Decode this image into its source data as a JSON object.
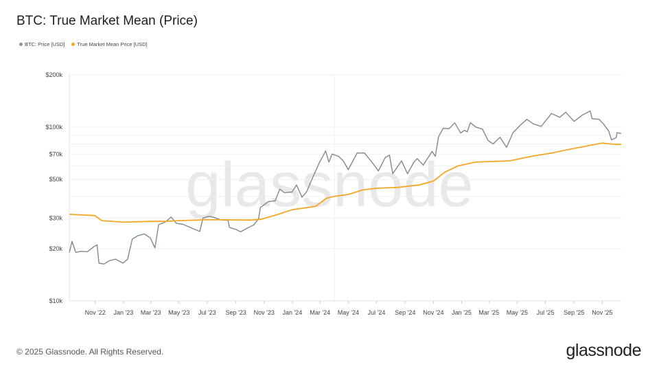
{
  "chart_data": {
    "type": "line",
    "title": "BTC: True Market Mean (Price)",
    "yscale": "log",
    "ylim": [
      10000,
      200000
    ],
    "y_ticks": [
      10000,
      20000,
      30000,
      50000,
      70000,
      100000,
      200000
    ],
    "y_tick_labels": [
      "$10k",
      "$20k",
      "$30k",
      "$50k",
      "$70k",
      "$100k",
      "$200k"
    ],
    "xlim": [
      "2022-09-06",
      "2025-12-12"
    ],
    "x_ticks": [
      "2022-11-01",
      "2023-01-01",
      "2023-03-01",
      "2023-05-01",
      "2023-07-01",
      "2023-09-01",
      "2023-11-01",
      "2024-01-01",
      "2024-03-01",
      "2024-05-01",
      "2024-07-01",
      "2024-09-01",
      "2024-11-01",
      "2025-01-01",
      "2025-03-01",
      "2025-05-01",
      "2025-07-01",
      "2025-09-01",
      "2025-11-01"
    ],
    "x_tick_labels": [
      "Nov '22",
      "Jan '23",
      "Mar '23",
      "May '23",
      "Jul '23",
      "Sep '23",
      "Nov '23",
      "Jan '24",
      "Mar '24",
      "May '24",
      "Jul '24",
      "Sep '24",
      "Nov '24",
      "Jan '25",
      "Mar '25",
      "May '25",
      "Jul '25",
      "Sep '25",
      "Nov '25"
    ],
    "grid": true,
    "legend_position": "top-left",
    "watermark": "glassnode",
    "series": [
      {
        "name": "BTC: Price [USD]",
        "color": "#7d8a8c",
        "points": [
          [
            "2022-09-06",
            19000
          ],
          [
            "2022-09-12",
            22000
          ],
          [
            "2022-09-20",
            19000
          ],
          [
            "2022-10-01",
            19300
          ],
          [
            "2022-10-15",
            19200
          ],
          [
            "2022-10-30",
            20600
          ],
          [
            "2022-11-05",
            21000
          ],
          [
            "2022-11-09",
            16500
          ],
          [
            "2022-11-20",
            16300
          ],
          [
            "2022-12-01",
            17000
          ],
          [
            "2022-12-15",
            17400
          ],
          [
            "2022-12-31",
            16500
          ],
          [
            "2023-01-10",
            17400
          ],
          [
            "2023-01-20",
            22700
          ],
          [
            "2023-02-01",
            23700
          ],
          [
            "2023-02-15",
            24300
          ],
          [
            "2023-02-28",
            23100
          ],
          [
            "2023-03-10",
            20200
          ],
          [
            "2023-03-18",
            27500
          ],
          [
            "2023-04-01",
            28400
          ],
          [
            "2023-04-14",
            30400
          ],
          [
            "2023-04-25",
            28000
          ],
          [
            "2023-05-10",
            27600
          ],
          [
            "2023-05-25",
            26500
          ],
          [
            "2023-06-15",
            25100
          ],
          [
            "2023-06-22",
            30000
          ],
          [
            "2023-07-05",
            30700
          ],
          [
            "2023-07-15",
            30300
          ],
          [
            "2023-07-30",
            29300
          ],
          [
            "2023-08-15",
            29100
          ],
          [
            "2023-08-18",
            26500
          ],
          [
            "2023-09-01",
            25800
          ],
          [
            "2023-09-11",
            25000
          ],
          [
            "2023-09-25",
            26200
          ],
          [
            "2023-10-10",
            27400
          ],
          [
            "2023-10-20",
            29700
          ],
          [
            "2023-10-24",
            34500
          ],
          [
            "2023-11-10",
            37300
          ],
          [
            "2023-11-25",
            37700
          ],
          [
            "2023-12-05",
            44000
          ],
          [
            "2023-12-15",
            42000
          ],
          [
            "2023-12-31",
            42300
          ],
          [
            "2024-01-10",
            46500
          ],
          [
            "2024-01-22",
            39500
          ],
          [
            "2024-02-01",
            42500
          ],
          [
            "2024-02-15",
            52000
          ],
          [
            "2024-02-28",
            62000
          ],
          [
            "2024-03-13",
            73000
          ],
          [
            "2024-03-20",
            63000
          ],
          [
            "2024-03-27",
            70000
          ],
          [
            "2024-04-10",
            68000
          ],
          [
            "2024-04-20",
            64000
          ],
          [
            "2024-05-01",
            57000
          ],
          [
            "2024-05-20",
            71000
          ],
          [
            "2024-06-05",
            71000
          ],
          [
            "2024-06-25",
            61000
          ],
          [
            "2024-07-05",
            56000
          ],
          [
            "2024-07-20",
            67000
          ],
          [
            "2024-07-29",
            69000
          ],
          [
            "2024-08-05",
            54000
          ],
          [
            "2024-08-24",
            64000
          ],
          [
            "2024-09-06",
            54000
          ],
          [
            "2024-09-20",
            63000
          ],
          [
            "2024-09-27",
            66000
          ],
          [
            "2024-10-10",
            60500
          ],
          [
            "2024-10-29",
            72500
          ],
          [
            "2024-11-05",
            68000
          ],
          [
            "2024-11-12",
            88000
          ],
          [
            "2024-11-22",
            98500
          ],
          [
            "2024-12-05",
            98000
          ],
          [
            "2024-12-17",
            106000
          ],
          [
            "2024-12-30",
            92500
          ],
          [
            "2025-01-07",
            96000
          ],
          [
            "2025-01-13",
            94000
          ],
          [
            "2025-01-20",
            106000
          ],
          [
            "2025-02-01",
            100000
          ],
          [
            "2025-02-15",
            97500
          ],
          [
            "2025-02-27",
            84000
          ],
          [
            "2025-03-10",
            80000
          ],
          [
            "2025-03-25",
            87500
          ],
          [
            "2025-04-08",
            76500
          ],
          [
            "2025-04-22",
            93000
          ],
          [
            "2025-05-10",
            104000
          ],
          [
            "2025-05-22",
            111000
          ],
          [
            "2025-06-05",
            104500
          ],
          [
            "2025-06-22",
            101000
          ],
          [
            "2025-07-10",
            116000
          ],
          [
            "2025-07-14",
            120000
          ],
          [
            "2025-08-01",
            114000
          ],
          [
            "2025-08-14",
            122000
          ],
          [
            "2025-09-01",
            108000
          ],
          [
            "2025-09-18",
            117000
          ],
          [
            "2025-10-06",
            124000
          ],
          [
            "2025-10-10",
            112000
          ],
          [
            "2025-10-25",
            111000
          ],
          [
            "2025-11-04",
            104000
          ],
          [
            "2025-11-15",
            95000
          ],
          [
            "2025-11-21",
            84500
          ],
          [
            "2025-12-01",
            87000
          ],
          [
            "2025-12-03",
            93000
          ],
          [
            "2025-12-12",
            92000
          ]
        ]
      },
      {
        "name": "True Market Mean Price [USD]",
        "color": "#f5a623",
        "points": [
          [
            "2022-09-06",
            31500
          ],
          [
            "2022-10-31",
            31000
          ],
          [
            "2022-11-15",
            29000
          ],
          [
            "2023-01-01",
            28400
          ],
          [
            "2023-03-01",
            28700
          ],
          [
            "2023-04-01",
            28700
          ],
          [
            "2023-05-01",
            29000
          ],
          [
            "2023-07-01",
            29300
          ],
          [
            "2023-08-01",
            29300
          ],
          [
            "2023-10-01",
            29200
          ],
          [
            "2023-10-25",
            29500
          ],
          [
            "2023-12-01",
            31500
          ],
          [
            "2024-01-01",
            33500
          ],
          [
            "2024-02-20",
            35000
          ],
          [
            "2024-03-15",
            39000
          ],
          [
            "2024-04-01",
            40000
          ],
          [
            "2024-05-01",
            41000
          ],
          [
            "2024-06-01",
            43500
          ],
          [
            "2024-07-01",
            44500
          ],
          [
            "2024-08-15",
            45000
          ],
          [
            "2024-10-01",
            46500
          ],
          [
            "2024-11-01",
            49000
          ],
          [
            "2024-11-25",
            55000
          ],
          [
            "2024-12-25",
            60000
          ],
          [
            "2025-02-01",
            63000
          ],
          [
            "2025-04-15",
            64000
          ],
          [
            "2025-06-01",
            68000
          ],
          [
            "2025-07-15",
            71000
          ],
          [
            "2025-08-15",
            74000
          ],
          [
            "2025-10-10",
            79000
          ],
          [
            "2025-11-01",
            81000
          ],
          [
            "2025-11-20",
            80000
          ],
          [
            "2025-12-12",
            79500
          ]
        ]
      }
    ]
  },
  "footer": {
    "copyright": "© 2025 Glassnode. All Rights Reserved.",
    "logo": "glassnode"
  }
}
